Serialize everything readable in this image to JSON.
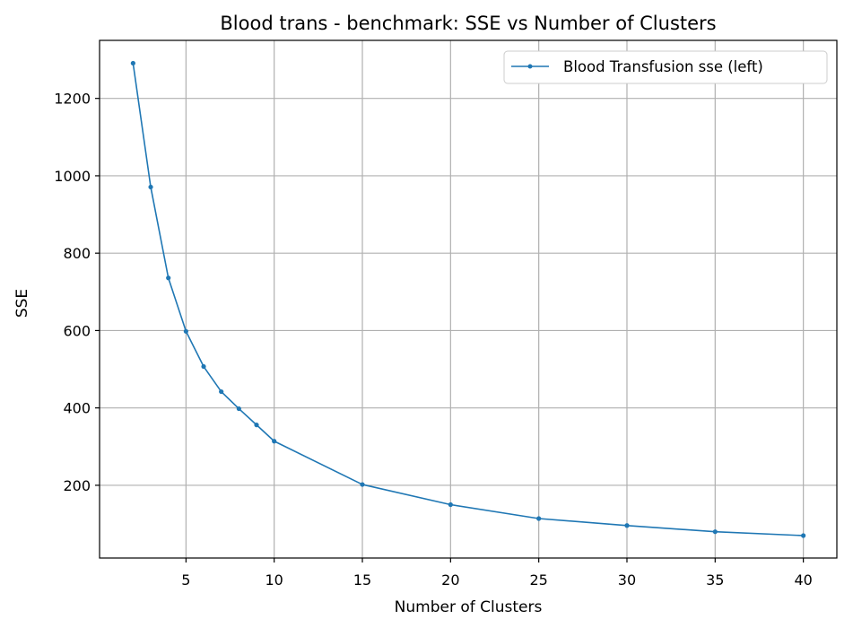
{
  "chart_data": {
    "type": "line",
    "title": "Blood trans - benchmark: SSE vs Number of Clusters",
    "xlabel": "Number of Clusters",
    "ylabel": "SSE",
    "x_ticks": [
      5,
      10,
      15,
      20,
      25,
      30,
      35,
      40
    ],
    "y_ticks": [
      200,
      400,
      600,
      800,
      1000,
      1200
    ],
    "xlim": [
      0.1,
      41.9
    ],
    "ylim": [
      12,
      1350
    ],
    "grid": true,
    "legend_position": "top-right",
    "series": [
      {
        "name": "Blood Transfusion sse (left)",
        "color": "#1f77b4",
        "marker": "dot",
        "x": [
          2,
          3,
          4,
          5,
          6,
          7,
          8,
          9,
          10,
          15,
          20,
          25,
          30,
          35,
          40
        ],
        "y": [
          1291,
          971,
          736,
          598,
          507,
          442,
          398,
          356,
          314,
          202,
          150,
          114,
          96,
          80,
          70
        ]
      }
    ]
  }
}
